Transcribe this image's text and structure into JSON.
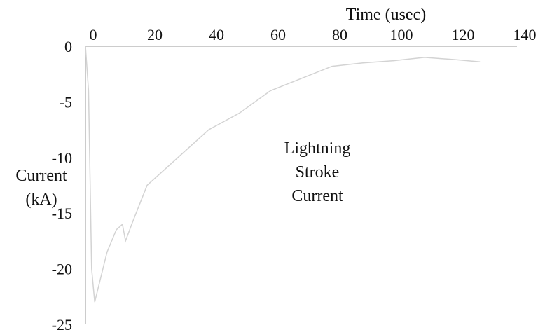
{
  "chart_data": {
    "type": "line",
    "title": "",
    "xlabel": "Time (usec)",
    "ylabel_lines": [
      "Current",
      "(kA)"
    ],
    "annotation_lines": [
      "Lightning",
      "Stroke",
      "Current"
    ],
    "xlim": [
      0,
      140
    ],
    "ylim": [
      -25,
      0
    ],
    "x_ticks": [
      0,
      20,
      40,
      60,
      80,
      100,
      120,
      140
    ],
    "y_ticks": [
      0,
      -5,
      -10,
      -15,
      -20,
      -25
    ],
    "grid": false,
    "legend": "none",
    "line_color": "#d3d3d3",
    "axis_color": "#bcbcbc",
    "series": [
      {
        "x": [
          0,
          1,
          2,
          3,
          7,
          10,
          12,
          13,
          15,
          20,
          30,
          40,
          50,
          60,
          80,
          90,
          100,
          110,
          120,
          128
        ],
        "y": [
          0,
          -4,
          -20,
          -23,
          -18.5,
          -16.5,
          -16,
          -17.5,
          -16,
          -12.5,
          -10,
          -7.5,
          -6,
          -4,
          -1.8,
          -1.5,
          -1.3,
          -1.0,
          -1.2,
          -1.4
        ]
      }
    ]
  }
}
